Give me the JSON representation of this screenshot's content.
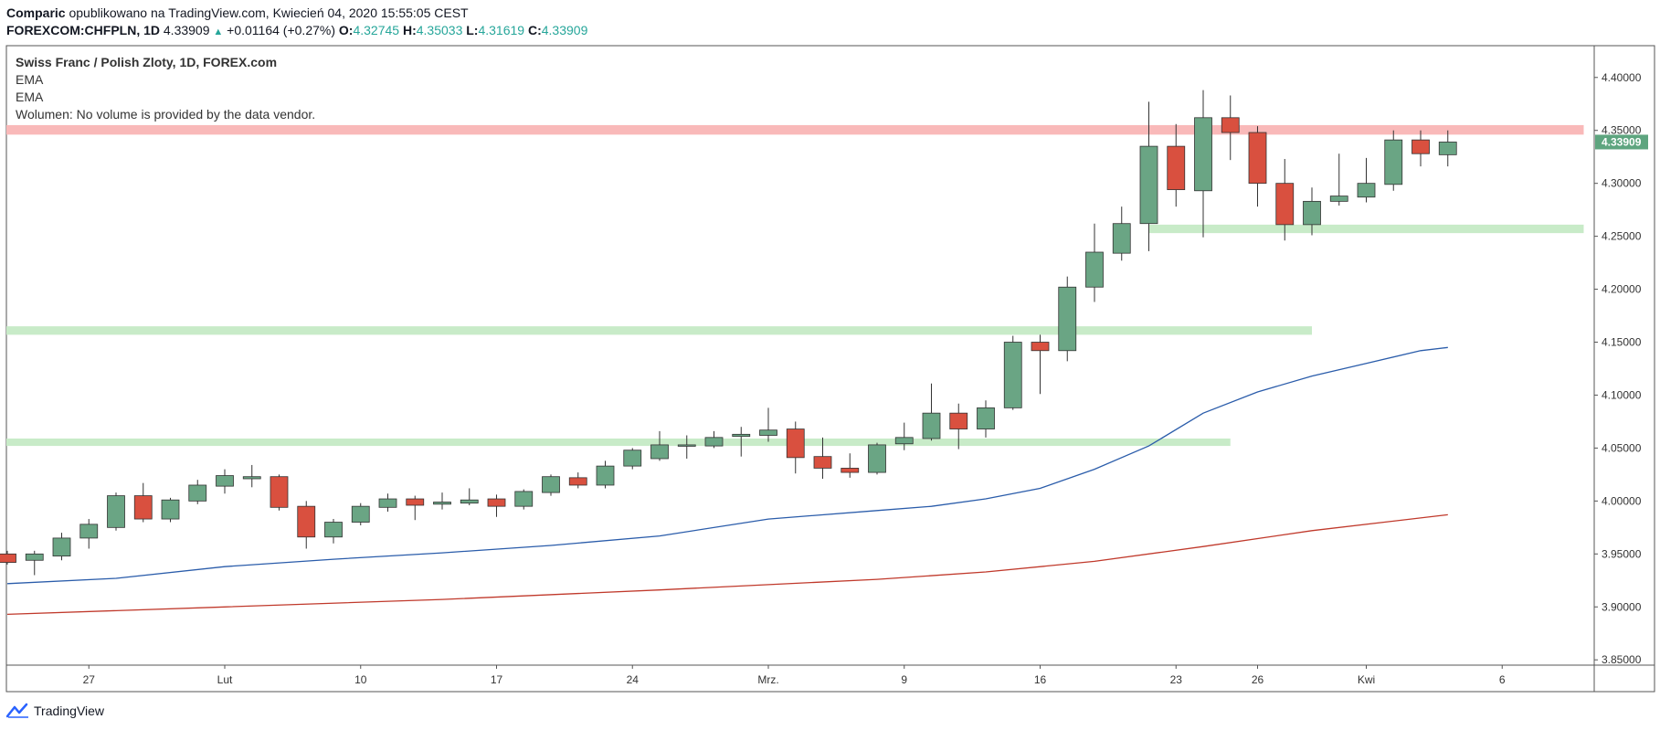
{
  "header": {
    "author": "Comparic",
    "published_text": "opublikowano na TradingView.com, Kwiecień 04, 2020 15:55:05 CEST",
    "symbol": "FOREXCOM:CHFPLN, 1D",
    "last": "4.33909",
    "change": "+0.01164 (+0.27%)",
    "o_label": "O:",
    "o_value": "4.32745",
    "h_label": "H:",
    "h_value": "4.35033",
    "l_label": "L:",
    "l_value": "4.31619",
    "c_label": "C:",
    "c_value": "4.33909"
  },
  "legend": {
    "title": "Swiss Franc / Polish Zloty, 1D, FOREX.com",
    "ema1": "EMA",
    "ema2": "EMA",
    "volume": "Wolumen: No volume is provided by the data vendor."
  },
  "footer": {
    "brand": "TradingView"
  },
  "colors": {
    "up": "#6aa584",
    "down": "#d9503f",
    "ema_fast": "#2a5caa",
    "ema_slow": "#c0392b",
    "resistance": "#f9b9b9",
    "support": "#c8ebc8",
    "price_label": "#5ea57f"
  },
  "chart_data": {
    "type": "candlestick",
    "ylim": [
      3.845,
      4.43
    ],
    "y_ticks": [
      "4.40000",
      "4.35000",
      "4.30000",
      "4.25000",
      "4.20000",
      "4.15000",
      "4.10000",
      "4.05000",
      "4.00000",
      "3.95000",
      "3.90000",
      "3.85000"
    ],
    "x_ticks": [
      {
        "label": "27",
        "slot": 3
      },
      {
        "label": "Lut",
        "slot": 8
      },
      {
        "label": "10",
        "slot": 13
      },
      {
        "label": "17",
        "slot": 18
      },
      {
        "label": "24",
        "slot": 23
      },
      {
        "label": "Mrz.",
        "slot": 28
      },
      {
        "label": "9",
        "slot": 33
      },
      {
        "label": "16",
        "slot": 38
      },
      {
        "label": "23",
        "slot": 43
      },
      {
        "label": "26",
        "slot": 46
      },
      {
        "label": "Kwi",
        "slot": 50
      },
      {
        "label": "6",
        "slot": 55
      }
    ],
    "last_price_label": "4.33909",
    "candles": [
      {
        "o": 3.95,
        "h": 3.953,
        "l": 3.94,
        "c": 3.942
      },
      {
        "o": 3.944,
        "h": 3.953,
        "l": 3.93,
        "c": 3.95
      },
      {
        "o": 3.948,
        "h": 3.97,
        "l": 3.944,
        "c": 3.965
      },
      {
        "o": 3.965,
        "h": 3.983,
        "l": 3.955,
        "c": 3.978
      },
      {
        "o": 3.975,
        "h": 4.008,
        "l": 3.972,
        "c": 4.005
      },
      {
        "o": 4.005,
        "h": 4.017,
        "l": 3.98,
        "c": 3.983
      },
      {
        "o": 3.983,
        "h": 4.003,
        "l": 3.98,
        "c": 4.001
      },
      {
        "o": 4.0,
        "h": 4.02,
        "l": 3.997,
        "c": 4.015
      },
      {
        "o": 4.014,
        "h": 4.03,
        "l": 4.007,
        "c": 4.024
      },
      {
        "o": 4.021,
        "h": 4.034,
        "l": 4.013,
        "c": 4.023
      },
      {
        "o": 4.023,
        "h": 4.025,
        "l": 3.991,
        "c": 3.994
      },
      {
        "o": 3.995,
        "h": 4.0,
        "l": 3.955,
        "c": 3.966
      },
      {
        "o": 3.966,
        "h": 3.983,
        "l": 3.96,
        "c": 3.98
      },
      {
        "o": 3.98,
        "h": 3.998,
        "l": 3.977,
        "c": 3.995
      },
      {
        "o": 3.994,
        "h": 4.007,
        "l": 3.99,
        "c": 4.002
      },
      {
        "o": 4.002,
        "h": 4.005,
        "l": 3.982,
        "c": 3.996
      },
      {
        "o": 3.997,
        "h": 4.008,
        "l": 3.992,
        "c": 3.999
      },
      {
        "o": 3.998,
        "h": 4.012,
        "l": 3.996,
        "c": 4.001
      },
      {
        "o": 4.002,
        "h": 4.006,
        "l": 3.985,
        "c": 3.995
      },
      {
        "o": 3.995,
        "h": 4.011,
        "l": 3.992,
        "c": 4.009
      },
      {
        "o": 4.008,
        "h": 4.025,
        "l": 4.005,
        "c": 4.023
      },
      {
        "o": 4.022,
        "h": 4.027,
        "l": 4.012,
        "c": 4.015
      },
      {
        "o": 4.015,
        "h": 4.038,
        "l": 4.012,
        "c": 4.033
      },
      {
        "o": 4.033,
        "h": 4.05,
        "l": 4.03,
        "c": 4.048
      },
      {
        "o": 4.04,
        "h": 4.066,
        "l": 4.038,
        "c": 4.053
      },
      {
        "o": 4.052,
        "h": 4.062,
        "l": 4.04,
        "c": 4.053
      },
      {
        "o": 4.052,
        "h": 4.066,
        "l": 4.05,
        "c": 4.06
      },
      {
        "o": 4.061,
        "h": 4.07,
        "l": 4.042,
        "c": 4.063
      },
      {
        "o": 4.062,
        "h": 4.088,
        "l": 4.056,
        "c": 4.067
      },
      {
        "o": 4.068,
        "h": 4.075,
        "l": 4.026,
        "c": 4.041
      },
      {
        "o": 4.042,
        "h": 4.06,
        "l": 4.021,
        "c": 4.031
      },
      {
        "o": 4.031,
        "h": 4.045,
        "l": 4.022,
        "c": 4.027
      },
      {
        "o": 4.027,
        "h": 4.055,
        "l": 4.025,
        "c": 4.053
      },
      {
        "o": 4.054,
        "h": 4.074,
        "l": 4.048,
        "c": 4.06
      },
      {
        "o": 4.059,
        "h": 4.111,
        "l": 4.057,
        "c": 4.083
      },
      {
        "o": 4.083,
        "h": 4.092,
        "l": 4.049,
        "c": 4.068
      },
      {
        "o": 4.068,
        "h": 4.095,
        "l": 4.06,
        "c": 4.088
      },
      {
        "o": 4.088,
        "h": 4.156,
        "l": 4.086,
        "c": 4.15
      },
      {
        "o": 4.15,
        "h": 4.157,
        "l": 4.101,
        "c": 4.142
      },
      {
        "o": 4.142,
        "h": 4.212,
        "l": 4.132,
        "c": 4.202
      },
      {
        "o": 4.202,
        "h": 4.262,
        "l": 4.188,
        "c": 4.235
      },
      {
        "o": 4.234,
        "h": 4.278,
        "l": 4.227,
        "c": 4.262
      },
      {
        "o": 4.262,
        "h": 4.377,
        "l": 4.236,
        "c": 4.335
      },
      {
        "o": 4.335,
        "h": 4.356,
        "l": 4.278,
        "c": 4.294
      },
      {
        "o": 4.293,
        "h": 4.388,
        "l": 4.249,
        "c": 4.362
      },
      {
        "o": 4.362,
        "h": 4.383,
        "l": 4.322,
        "c": 4.348
      },
      {
        "o": 4.348,
        "h": 4.354,
        "l": 4.278,
        "c": 4.3
      },
      {
        "o": 4.3,
        "h": 4.323,
        "l": 4.246,
        "c": 4.261
      },
      {
        "o": 4.261,
        "h": 4.296,
        "l": 4.251,
        "c": 4.283
      },
      {
        "o": 4.283,
        "h": 4.328,
        "l": 4.279,
        "c": 4.288
      },
      {
        "o": 4.287,
        "h": 4.324,
        "l": 4.282,
        "c": 4.3
      },
      {
        "o": 4.299,
        "h": 4.35,
        "l": 4.293,
        "c": 4.341
      },
      {
        "o": 4.341,
        "h": 4.35,
        "l": 4.316,
        "c": 4.328
      },
      {
        "o": 4.327,
        "h": 4.35,
        "l": 4.316,
        "c": 4.339
      }
    ],
    "ema_fast": [
      [
        0,
        3.922
      ],
      [
        4,
        3.927
      ],
      [
        8,
        3.938
      ],
      [
        12,
        3.945
      ],
      [
        16,
        3.951
      ],
      [
        20,
        3.958
      ],
      [
        24,
        3.967
      ],
      [
        28,
        3.983
      ],
      [
        32,
        3.991
      ],
      [
        34,
        3.995
      ],
      [
        36,
        4.002
      ],
      [
        38,
        4.012
      ],
      [
        40,
        4.03
      ],
      [
        42,
        4.052
      ],
      [
        44,
        4.083
      ],
      [
        46,
        4.103
      ],
      [
        48,
        4.118
      ],
      [
        50,
        4.13
      ],
      [
        52,
        4.142
      ],
      [
        53,
        4.145
      ]
    ],
    "ema_slow": [
      [
        0,
        3.893
      ],
      [
        8,
        3.9
      ],
      [
        16,
        3.907
      ],
      [
        24,
        3.916
      ],
      [
        32,
        3.926
      ],
      [
        36,
        3.933
      ],
      [
        40,
        3.943
      ],
      [
        44,
        3.957
      ],
      [
        48,
        3.972
      ],
      [
        53,
        3.987
      ]
    ],
    "zones": [
      {
        "kind": "resistance",
        "y1": 4.346,
        "y2": 4.355,
        "from_slot": -1,
        "to_slot": 58
      },
      {
        "kind": "support",
        "y1": 4.253,
        "y2": 4.261,
        "from_slot": 42,
        "to_slot": 58
      },
      {
        "kind": "support",
        "y1": 4.157,
        "y2": 4.165,
        "from_slot": -1,
        "to_slot": 48
      },
      {
        "kind": "support",
        "y1": 4.052,
        "y2": 4.059,
        "from_slot": -1,
        "to_slot": 45
      }
    ]
  }
}
